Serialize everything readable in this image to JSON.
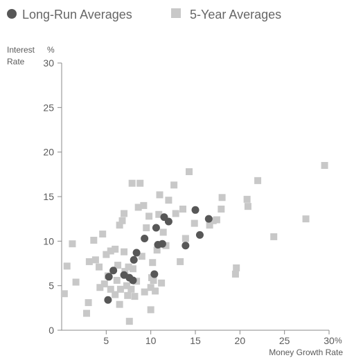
{
  "chart_data": {
    "type": "scatter",
    "title": "",
    "xlabel": "Money Growth Rate",
    "x_unit": "%",
    "ylabel_line1": "Interest",
    "ylabel_line2": "Rate",
    "y_unit": "%",
    "xlim": [
      0,
      30
    ],
    "ylim": [
      0,
      30
    ],
    "x_ticks": [
      5,
      10,
      15,
      20,
      25,
      30
    ],
    "y_ticks": [
      0,
      5,
      10,
      15,
      20,
      25,
      30
    ],
    "x_tick_labels": [
      "5",
      "10",
      "15",
      "20",
      "25",
      "30"
    ],
    "y_tick_labels": [
      "0",
      "5",
      "10",
      "15",
      "20",
      "25",
      "30"
    ],
    "grid": false,
    "legend_position": "top",
    "series": [
      {
        "name": "Long-Run Averages",
        "marker": "circle",
        "color": "#575757",
        "points": [
          [
            5.2,
            3.4
          ],
          [
            5.3,
            6.0
          ],
          [
            5.8,
            6.7
          ],
          [
            7.0,
            6.2
          ],
          [
            7.6,
            5.9
          ],
          [
            8.0,
            5.6
          ],
          [
            8.1,
            7.9
          ],
          [
            8.4,
            8.7
          ],
          [
            9.3,
            10.3
          ],
          [
            10.4,
            6.3
          ],
          [
            10.6,
            11.5
          ],
          [
            10.8,
            9.6
          ],
          [
            11.3,
            9.7
          ],
          [
            11.5,
            12.7
          ],
          [
            12.0,
            12.2
          ],
          [
            13.9,
            9.5
          ],
          [
            15.0,
            13.5
          ],
          [
            15.5,
            10.7
          ],
          [
            16.5,
            12.5
          ]
        ]
      },
      {
        "name": "5-Year Averages",
        "marker": "square",
        "color": "#c8c8c8",
        "points": [
          [
            0.3,
            4.1
          ],
          [
            0.6,
            7.2
          ],
          [
            1.2,
            9.7
          ],
          [
            1.6,
            5.4
          ],
          [
            2.8,
            1.9
          ],
          [
            3.0,
            3.1
          ],
          [
            3.1,
            7.7
          ],
          [
            3.6,
            10.1
          ],
          [
            3.8,
            7.9
          ],
          [
            4.2,
            7.1
          ],
          [
            4.3,
            4.8
          ],
          [
            4.6,
            10.8
          ],
          [
            4.8,
            5.2
          ],
          [
            5.0,
            8.5
          ],
          [
            5.2,
            6.1
          ],
          [
            5.5,
            4.6
          ],
          [
            5.5,
            8.9
          ],
          [
            6.0,
            9.1
          ],
          [
            6.0,
            4.0
          ],
          [
            6.2,
            5.6
          ],
          [
            6.3,
            7.3
          ],
          [
            6.5,
            11.8
          ],
          [
            6.5,
            2.9
          ],
          [
            6.6,
            4.6
          ],
          [
            6.8,
            12.3
          ],
          [
            7.0,
            13.1
          ],
          [
            7.0,
            8.8
          ],
          [
            7.1,
            6.6
          ],
          [
            7.3,
            5.0
          ],
          [
            7.4,
            3.9
          ],
          [
            7.5,
            7.1
          ],
          [
            7.6,
            1.0
          ],
          [
            7.8,
            4.6
          ],
          [
            7.9,
            16.5
          ],
          [
            8.0,
            6.9
          ],
          [
            8.2,
            3.8
          ],
          [
            8.4,
            5.5
          ],
          [
            8.6,
            13.8
          ],
          [
            8.8,
            16.5
          ],
          [
            9.0,
            8.3
          ],
          [
            9.2,
            14.0
          ],
          [
            9.3,
            4.3
          ],
          [
            9.5,
            11.5
          ],
          [
            9.8,
            12.8
          ],
          [
            10.0,
            2.3
          ],
          [
            10.0,
            4.8
          ],
          [
            10.1,
            5.9
          ],
          [
            10.2,
            7.6
          ],
          [
            10.3,
            5.6
          ],
          [
            10.5,
            4.4
          ],
          [
            10.7,
            9.0
          ],
          [
            10.9,
            13.0
          ],
          [
            11.0,
            15.2
          ],
          [
            11.2,
            5.3
          ],
          [
            11.4,
            11.0
          ],
          [
            11.7,
            9.5
          ],
          [
            12.0,
            14.6
          ],
          [
            12.6,
            16.3
          ],
          [
            12.8,
            13.1
          ],
          [
            13.3,
            7.7
          ],
          [
            13.6,
            13.6
          ],
          [
            13.9,
            10.3
          ],
          [
            14.3,
            17.8
          ],
          [
            14.9,
            12.0
          ],
          [
            16.6,
            11.8
          ],
          [
            17.0,
            12.3
          ],
          [
            17.4,
            12.4
          ],
          [
            17.9,
            13.6
          ],
          [
            18.0,
            14.9
          ],
          [
            19.5,
            6.3
          ],
          [
            19.6,
            7.0
          ],
          [
            20.8,
            14.7
          ],
          [
            20.9,
            13.9
          ],
          [
            22.0,
            16.8
          ],
          [
            23.8,
            10.5
          ],
          [
            27.4,
            12.5
          ],
          [
            29.5,
            18.5
          ]
        ]
      }
    ]
  },
  "colors": {
    "axis": "#888888",
    "text": "#5a5a5a",
    "long_run": "#575757",
    "five_year": "#c8c8c8"
  }
}
